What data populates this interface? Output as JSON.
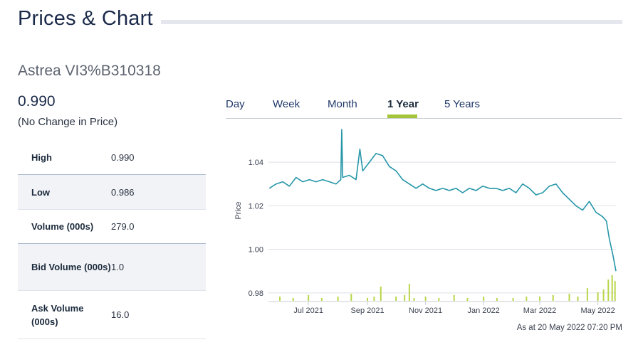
{
  "header": {
    "title": "Prices & Chart"
  },
  "security": {
    "name": "Astrea VI3%B310318",
    "price": "0.990",
    "change": "(No Change in Price)"
  },
  "stats": [
    {
      "label": "High",
      "value": "0.990"
    },
    {
      "label": "Low",
      "value": "0.986"
    },
    {
      "label": "Volume (000s)",
      "value": "279.0"
    },
    {
      "label": "Bid Volume (000s)",
      "value": "1.0"
    },
    {
      "label": "Ask Volume (000s)",
      "value": "16.0"
    }
  ],
  "tabs": [
    {
      "label": "Day",
      "active": false
    },
    {
      "label": "Week",
      "active": false
    },
    {
      "label": "Month",
      "active": false
    },
    {
      "label": "1 Year",
      "active": true
    },
    {
      "label": "5 Years",
      "active": false
    }
  ],
  "colors": {
    "price_line": "#2596a8",
    "volume_bar": "#b8d64a",
    "tab_active": "#a4c53a",
    "title": "#1b2a4a"
  },
  "chart_data": {
    "type": "line",
    "ylabel": "Price",
    "ylim": [
      0.978,
      1.057
    ],
    "yticks": [
      "1.04",
      "1.02",
      "1.00",
      "0.98"
    ],
    "ytick_values": [
      1.04,
      1.02,
      1.0,
      0.98
    ],
    "xticks": [
      "Jul 2021",
      "Sep 2021",
      "Nov 2021",
      "Jan 2022",
      "Mar 2022",
      "May 2022"
    ],
    "xtick_dates": [
      "2021-07-01",
      "2021-09-01",
      "2021-11-01",
      "2022-01-01",
      "2022-03-01",
      "2022-05-01"
    ],
    "xlim": [
      "2021-05-20",
      "2022-05-20"
    ],
    "grid": true,
    "series": [
      {
        "type": "line",
        "x": [
          "2021-05-21",
          "2021-05-28",
          "2021-06-04",
          "2021-06-11",
          "2021-06-18",
          "2021-06-25",
          "2021-07-02",
          "2021-07-09",
          "2021-07-16",
          "2021-07-23",
          "2021-07-30",
          "2021-08-04",
          "2021-08-05",
          "2021-08-06",
          "2021-08-13",
          "2021-08-20",
          "2021-08-24",
          "2021-08-27",
          "2021-09-03",
          "2021-09-10",
          "2021-09-17",
          "2021-09-24",
          "2021-10-01",
          "2021-10-08",
          "2021-10-15",
          "2021-10-22",
          "2021-10-29",
          "2021-11-05",
          "2021-11-12",
          "2021-11-19",
          "2021-11-26",
          "2021-12-03",
          "2021-12-10",
          "2021-12-17",
          "2021-12-24",
          "2021-12-31",
          "2022-01-07",
          "2022-01-14",
          "2022-01-21",
          "2022-01-28",
          "2022-02-04",
          "2022-02-11",
          "2022-02-18",
          "2022-02-25",
          "2022-03-04",
          "2022-03-11",
          "2022-03-18",
          "2022-03-25",
          "2022-04-01",
          "2022-04-08",
          "2022-04-15",
          "2022-04-22",
          "2022-04-29",
          "2022-05-06",
          "2022-05-10",
          "2022-05-13",
          "2022-05-17",
          "2022-05-20"
        ],
        "y": [
          1.028,
          1.03,
          1.031,
          1.029,
          1.033,
          1.031,
          1.032,
          1.031,
          1.032,
          1.031,
          1.03,
          1.032,
          1.055,
          1.033,
          1.034,
          1.032,
          1.046,
          1.036,
          1.04,
          1.044,
          1.043,
          1.038,
          1.036,
          1.032,
          1.03,
          1.028,
          1.03,
          1.028,
          1.027,
          1.028,
          1.027,
          1.028,
          1.026,
          1.028,
          1.027,
          1.029,
          1.028,
          1.028,
          1.027,
          1.028,
          1.026,
          1.03,
          1.028,
          1.025,
          1.026,
          1.029,
          1.03,
          1.026,
          1.023,
          1.02,
          1.018,
          1.022,
          1.017,
          1.015,
          1.013,
          1.005,
          0.997,
          0.99
        ]
      },
      {
        "type": "bar",
        "name": "Volume",
        "x": [
          "2021-06-01",
          "2021-06-15",
          "2021-07-01",
          "2021-07-15",
          "2021-08-01",
          "2021-08-15",
          "2021-09-01",
          "2021-09-08",
          "2021-09-15",
          "2021-10-01",
          "2021-10-10",
          "2021-10-15",
          "2021-10-20",
          "2021-11-01",
          "2021-11-15",
          "2021-12-01",
          "2021-12-15",
          "2022-01-01",
          "2022-01-15",
          "2022-02-01",
          "2022-02-15",
          "2022-03-01",
          "2022-03-15",
          "2022-04-01",
          "2022-04-10",
          "2022-04-20",
          "2022-05-01",
          "2022-05-07",
          "2022-05-12",
          "2022-05-16",
          "2022-05-19"
        ],
        "y": [
          3,
          2,
          4,
          2,
          3,
          5,
          2,
          3,
          10,
          3,
          4,
          12,
          2,
          3,
          2,
          4,
          2,
          3,
          2,
          2,
          3,
          3,
          4,
          5,
          3,
          9,
          6,
          8,
          15,
          18,
          14
        ]
      }
    ]
  },
  "footer": {
    "timestamp": "As at 20 May 2022 07:20 PM"
  }
}
